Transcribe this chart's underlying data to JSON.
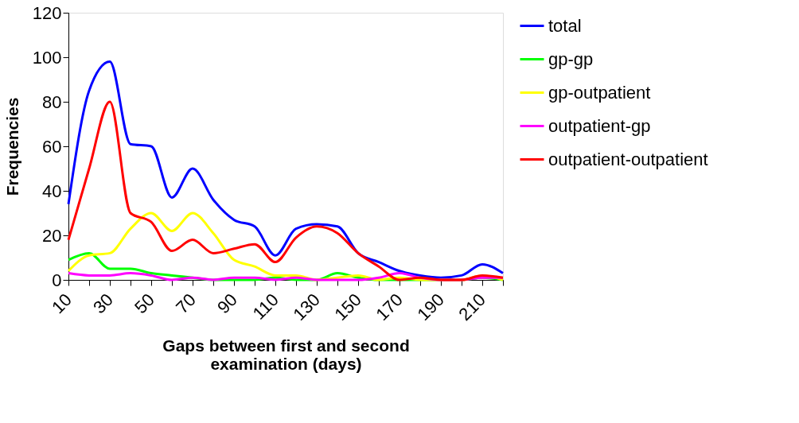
{
  "chart_data": {
    "type": "line",
    "xlabel": "Gaps between first and second examination (days)",
    "ylabel": "Frequencies",
    "categories": [
      "10",
      null,
      "30",
      null,
      "50",
      null,
      "70",
      null,
      "90",
      null,
      "110",
      null,
      "130",
      null,
      "150",
      null,
      "170",
      null,
      "190",
      null,
      "210",
      null
    ],
    "ylim": [
      0,
      120
    ],
    "yticks": [
      0,
      20,
      40,
      60,
      80,
      100,
      120
    ],
    "grid": false,
    "legend": "right",
    "marker": "none",
    "line_style": "solid",
    "series": [
      {
        "name": "total",
        "color": "#0000ff",
        "values": [
          34,
          85,
          98,
          61,
          60,
          37,
          50,
          36,
          27,
          24,
          11,
          23,
          25,
          24,
          12,
          8,
          4,
          2,
          1,
          2,
          7,
          3
        ]
      },
      {
        "name": "gp-gp",
        "color": "#00ff00",
        "values": [
          9,
          12,
          5,
          5,
          3,
          2,
          1,
          0,
          0,
          0,
          1,
          0,
          0,
          3,
          1,
          0,
          0,
          0,
          0,
          0,
          1,
          0
        ]
      },
      {
        "name": "gp-outpatient",
        "color": "#ffff00",
        "values": [
          4,
          11,
          12,
          23,
          30,
          22,
          30,
          21,
          9,
          6,
          2,
          2,
          0,
          1,
          2,
          0,
          1,
          0,
          0,
          0,
          2,
          0
        ]
      },
      {
        "name": "outpatient-gp",
        "color": "#ff00ff",
        "values": [
          3,
          2,
          2,
          3,
          2,
          0,
          1,
          0,
          1,
          1,
          0,
          1,
          0,
          0,
          0,
          1,
          3,
          1,
          0,
          0,
          1,
          1
        ]
      },
      {
        "name": "outpatient-outpatient",
        "color": "#ff0000",
        "values": [
          18,
          50,
          80,
          30,
          26,
          13,
          18,
          12,
          14,
          16,
          8,
          19,
          24,
          21,
          12,
          6,
          0,
          1,
          0,
          0,
          2,
          1
        ]
      }
    ]
  }
}
